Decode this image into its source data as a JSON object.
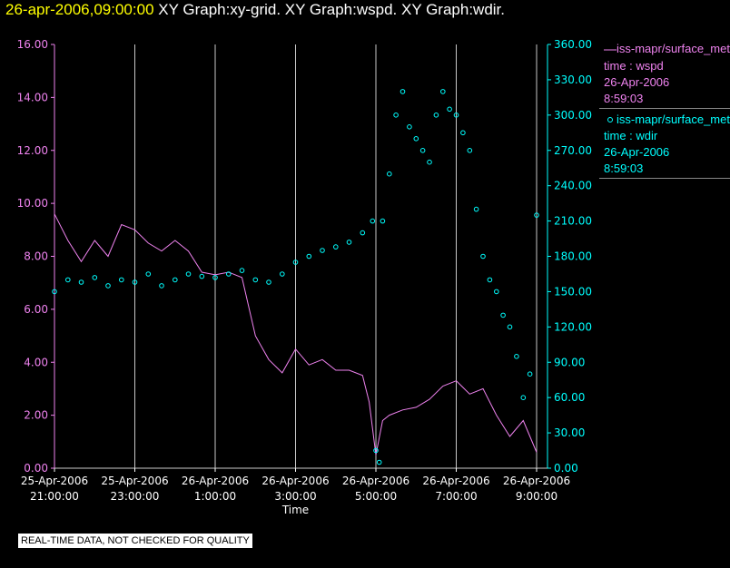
{
  "header": {
    "date": "26-apr-2006,09:00:00",
    "titles": "XY Graph:xy-grid.  XY Graph:wspd.  XY Graph:wdir."
  },
  "legend": [
    {
      "series": "iss-mapr/surface_met",
      "line1": "time : wspd",
      "line2": "26-Apr-2006",
      "line3": "8:59:03",
      "color": "#ee82ee",
      "symbol": "line"
    },
    {
      "series": "iss-mapr/surface_met",
      "line1": "time : wdir",
      "line2": "26-Apr-2006",
      "line3": "8:59:03",
      "color": "#00ffff",
      "symbol": "circle"
    }
  ],
  "footer_note": "REAL-TIME DATA, NOT CHECKED FOR QUALITY",
  "chart_data": {
    "type": "line",
    "xlabel": "Time",
    "xlim": [
      "2006-04-25 21:00",
      "2006-04-26 09:00"
    ],
    "x_ticks": [
      {
        "date": "25-Apr-2006",
        "time": "21:00:00"
      },
      {
        "date": "25-Apr-2006",
        "time": "23:00:00"
      },
      {
        "date": "26-Apr-2006",
        "time": "1:00:00"
      },
      {
        "date": "26-Apr-2006",
        "time": "3:00:00"
      },
      {
        "date": "26-Apr-2006",
        "time": "5:00:00"
      },
      {
        "date": "26-Apr-2006",
        "time": "7:00:00"
      },
      {
        "date": "26-Apr-2006",
        "time": "9:00:00"
      }
    ],
    "y_left": {
      "label": "",
      "lim": [
        0,
        16
      ],
      "ticks": [
        "0.00",
        "2.00",
        "4.00",
        "6.00",
        "8.00",
        "10.00",
        "12.00",
        "14.00",
        "16.00"
      ],
      "color": "#ee82ee"
    },
    "y_right": {
      "label": "",
      "lim": [
        0,
        360
      ],
      "ticks": [
        "0.00",
        "30.00",
        "60.00",
        "90.00",
        "120.00",
        "150.00",
        "180.00",
        "210.00",
        "240.00",
        "270.00",
        "300.00",
        "330.00",
        "360.00"
      ],
      "color": "#00ffff"
    },
    "grid": "vertical",
    "series": [
      {
        "name": "wspd",
        "axis": "left",
        "color": "#ee82ee",
        "style": "line",
        "x": [
          "2006-04-25 21:00",
          "2006-04-25 21:20",
          "2006-04-25 21:40",
          "2006-04-25 22:00",
          "2006-04-25 22:20",
          "2006-04-25 22:40",
          "2006-04-25 23:00",
          "2006-04-25 23:20",
          "2006-04-25 23:40",
          "2006-04-26 00:00",
          "2006-04-26 00:20",
          "2006-04-26 00:40",
          "2006-04-26 01:00",
          "2006-04-26 01:20",
          "2006-04-26 01:40",
          "2006-04-26 02:00",
          "2006-04-26 02:20",
          "2006-04-26 02:40",
          "2006-04-26 03:00",
          "2006-04-26 03:20",
          "2006-04-26 03:40",
          "2006-04-26 04:00",
          "2006-04-26 04:20",
          "2006-04-26 04:40",
          "2006-04-26 04:50",
          "2006-04-26 05:00",
          "2006-04-26 05:10",
          "2006-04-26 05:20",
          "2006-04-26 05:40",
          "2006-04-26 06:00",
          "2006-04-26 06:20",
          "2006-04-26 06:40",
          "2006-04-26 07:00",
          "2006-04-26 07:20",
          "2006-04-26 07:40",
          "2006-04-26 08:00",
          "2006-04-26 08:20",
          "2006-04-26 08:40",
          "2006-04-26 09:00"
        ],
        "y": [
          9.6,
          8.6,
          7.8,
          8.6,
          8.0,
          9.2,
          9.0,
          8.5,
          8.2,
          8.6,
          8.2,
          7.4,
          7.3,
          7.4,
          7.2,
          5.0,
          4.1,
          3.6,
          4.5,
          3.9,
          4.1,
          3.7,
          3.7,
          3.5,
          2.5,
          0.5,
          1.8,
          2.0,
          2.2,
          2.3,
          2.6,
          3.1,
          3.3,
          2.8,
          3.0,
          2.0,
          1.2,
          1.8,
          0.6
        ]
      },
      {
        "name": "wdir",
        "axis": "right",
        "color": "#00ffff",
        "style": "circles",
        "x": [
          "2006-04-25 21:00",
          "2006-04-25 21:20",
          "2006-04-25 21:40",
          "2006-04-25 22:00",
          "2006-04-25 22:20",
          "2006-04-25 22:40",
          "2006-04-25 23:00",
          "2006-04-25 23:20",
          "2006-04-25 23:40",
          "2006-04-26 00:00",
          "2006-04-26 00:20",
          "2006-04-26 00:40",
          "2006-04-26 01:00",
          "2006-04-26 01:20",
          "2006-04-26 01:40",
          "2006-04-26 02:00",
          "2006-04-26 02:20",
          "2006-04-26 02:40",
          "2006-04-26 03:00",
          "2006-04-26 03:20",
          "2006-04-26 03:40",
          "2006-04-26 04:00",
          "2006-04-26 04:20",
          "2006-04-26 04:40",
          "2006-04-26 04:55",
          "2006-04-26 05:00",
          "2006-04-26 05:05",
          "2006-04-26 05:10",
          "2006-04-26 05:20",
          "2006-04-26 05:30",
          "2006-04-26 05:40",
          "2006-04-26 05:50",
          "2006-04-26 06:00",
          "2006-04-26 06:10",
          "2006-04-26 06:20",
          "2006-04-26 06:30",
          "2006-04-26 06:40",
          "2006-04-26 06:50",
          "2006-04-26 07:00",
          "2006-04-26 07:10",
          "2006-04-26 07:20",
          "2006-04-26 07:30",
          "2006-04-26 07:40",
          "2006-04-26 07:50",
          "2006-04-26 08:00",
          "2006-04-26 08:10",
          "2006-04-26 08:20",
          "2006-04-26 08:30",
          "2006-04-26 08:40",
          "2006-04-26 08:50",
          "2006-04-26 09:00"
        ],
        "y": [
          150,
          160,
          158,
          162,
          155,
          160,
          158,
          165,
          155,
          160,
          165,
          163,
          162,
          165,
          168,
          160,
          158,
          165,
          175,
          180,
          185,
          188,
          192,
          200,
          210,
          15,
          5,
          210,
          250,
          300,
          320,
          290,
          280,
          270,
          260,
          300,
          320,
          305,
          300,
          285,
          270,
          220,
          180,
          160,
          150,
          130,
          120,
          95,
          60,
          80,
          215
        ]
      }
    ]
  }
}
